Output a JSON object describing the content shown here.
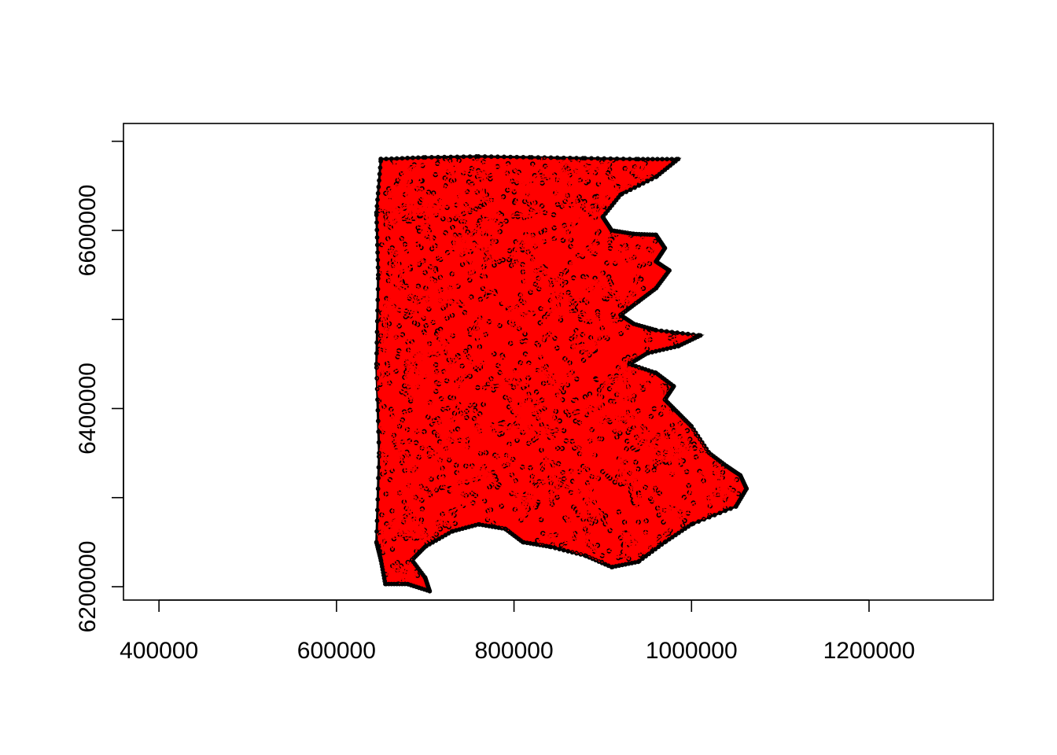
{
  "chart_data": {
    "type": "scatter",
    "title": "",
    "xlabel": "",
    "ylabel": "",
    "xlim": [
      360000,
      1340000
    ],
    "ylim": [
      6185000,
      6720000
    ],
    "x_ticks": [
      400000,
      600000,
      800000,
      1000000,
      1200000
    ],
    "x_tick_labels": [
      "400000",
      "600000",
      "800000",
      "1000000",
      "1200000"
    ],
    "y_ticks": [
      6200000,
      6300000,
      6400000,
      6500000,
      6600000,
      6700000
    ],
    "y_tick_labels": [
      "6200000",
      "",
      "6400000",
      "",
      "6600000",
      ""
    ],
    "grid": false,
    "series": [
      {
        "point_color": "#000000",
        "line_color": "#ff0000",
        "region_outline": [
          [
            650000,
            6680000
          ],
          [
            700000,
            6682000
          ],
          [
            760000,
            6683000
          ],
          [
            820000,
            6682000
          ],
          [
            880000,
            6681000
          ],
          [
            940000,
            6680000
          ],
          [
            985000,
            6680000
          ],
          [
            960000,
            6660000
          ],
          [
            920000,
            6640000
          ],
          [
            900000,
            6615000
          ],
          [
            910000,
            6600000
          ],
          [
            935000,
            6596000
          ],
          [
            960000,
            6595000
          ],
          [
            970000,
            6580000
          ],
          [
            960000,
            6565000
          ],
          [
            975000,
            6555000
          ],
          [
            960000,
            6535000
          ],
          [
            940000,
            6520000
          ],
          [
            920000,
            6505000
          ],
          [
            935000,
            6495000
          ],
          [
            960000,
            6488000
          ],
          [
            1010000,
            6482000
          ],
          [
            985000,
            6470000
          ],
          [
            950000,
            6462000
          ],
          [
            930000,
            6450000
          ],
          [
            960000,
            6440000
          ],
          [
            980000,
            6425000
          ],
          [
            970000,
            6410000
          ],
          [
            985000,
            6395000
          ],
          [
            1000000,
            6380000
          ],
          [
            1020000,
            6350000
          ],
          [
            1040000,
            6335000
          ],
          [
            1055000,
            6325000
          ],
          [
            1062000,
            6310000
          ],
          [
            1050000,
            6290000
          ],
          [
            1000000,
            6270000
          ],
          [
            970000,
            6250000
          ],
          [
            940000,
            6228000
          ],
          [
            910000,
            6222000
          ],
          [
            880000,
            6235000
          ],
          [
            840000,
            6245000
          ],
          [
            810000,
            6250000
          ],
          [
            790000,
            6265000
          ],
          [
            760000,
            6270000
          ],
          [
            730000,
            6262000
          ],
          [
            700000,
            6245000
          ],
          [
            685000,
            6230000
          ],
          [
            700000,
            6210000
          ],
          [
            705000,
            6195000
          ],
          [
            680000,
            6203000
          ],
          [
            655000,
            6203000
          ],
          [
            650000,
            6230000
          ],
          [
            645000,
            6250000
          ],
          [
            648000,
            6350000
          ],
          [
            645000,
            6450000
          ],
          [
            647000,
            6550000
          ],
          [
            645000,
            6620000
          ],
          [
            650000,
            6680000
          ]
        ],
        "density_centers": [
          [
            840000,
            6550000
          ],
          [
            720000,
            6620000
          ],
          [
            880000,
            6500000
          ],
          [
            950000,
            6320000
          ]
        ]
      }
    ]
  }
}
